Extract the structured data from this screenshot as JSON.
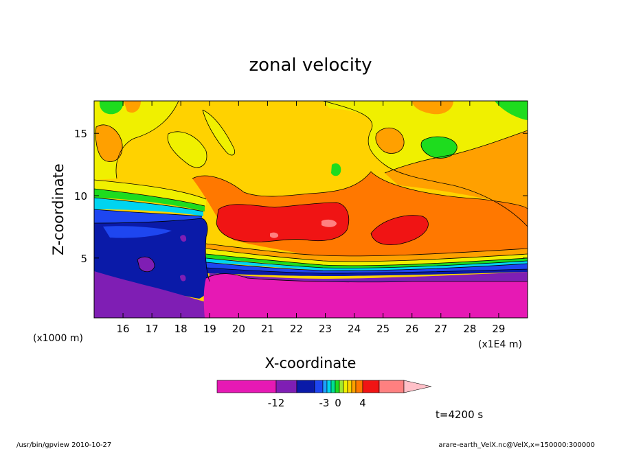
{
  "chart_data": {
    "type": "heatmap",
    "title": "zonal velocity",
    "xlabel": "X-coordinate",
    "ylabel": "Z-coordinate",
    "x_unit": "(x1E4 m)",
    "y_unit": "(x1000 m)",
    "xlim": [
      15.0,
      30.0
    ],
    "ylim": [
      0.2,
      17.6
    ],
    "x_ticks": [
      16,
      17,
      18,
      19,
      20,
      21,
      22,
      23,
      24,
      25,
      26,
      27,
      28,
      29
    ],
    "y_ticks": [
      5,
      10,
      15
    ],
    "time_label": "t=4200 s",
    "colorbar": {
      "labels": [
        "-12",
        "-3",
        "0",
        "4"
      ],
      "level_colors": [
        "#e619b4",
        "#7f1eb4",
        "#0a1aa8",
        "#1e46f0",
        "#1ea0ff",
        "#00d4f0",
        "#00e090",
        "#1edc1e",
        "#a0e632",
        "#f0f000",
        "#ffd200",
        "#ffa000",
        "#ff7800",
        "#f01414",
        "#ff8080",
        "#ffc0c8"
      ]
    },
    "regions_description_colors": {
      "strong_negative": "#e619b4",
      "negative": "#7f1eb4",
      "weak_negative": "#0a1aa8",
      "near_zero": "#ffd200",
      "positive": "#ff7800",
      "strong_positive": "#f01414"
    }
  },
  "footer": {
    "left": "/usr/bin/gpview   2010-10-27",
    "right": "arare-earth_VelX.nc@VelX,x=150000:300000"
  }
}
